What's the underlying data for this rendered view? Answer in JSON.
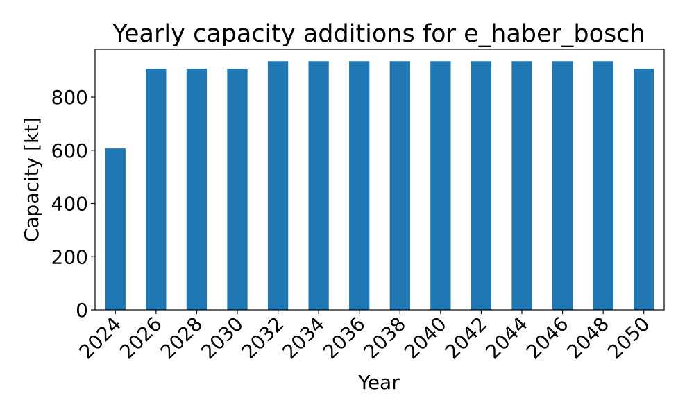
{
  "chart_data": {
    "type": "bar",
    "title": "Yearly capacity additions for e_haber_bosch",
    "xlabel": "Year",
    "ylabel": "Capacity [kt]",
    "categories": [
      "2024",
      "2026",
      "2028",
      "2030",
      "2032",
      "2034",
      "2036",
      "2038",
      "2040",
      "2042",
      "2044",
      "2046",
      "2048",
      "2050"
    ],
    "values": [
      607,
      907,
      907,
      907,
      935,
      935,
      935,
      935,
      935,
      935,
      935,
      935,
      935,
      907
    ],
    "ylim": [
      0,
      980
    ],
    "yticks": [
      0,
      200,
      400,
      600,
      800
    ],
    "bar_color": "#1f77b4",
    "grid": false,
    "legend": "none"
  }
}
